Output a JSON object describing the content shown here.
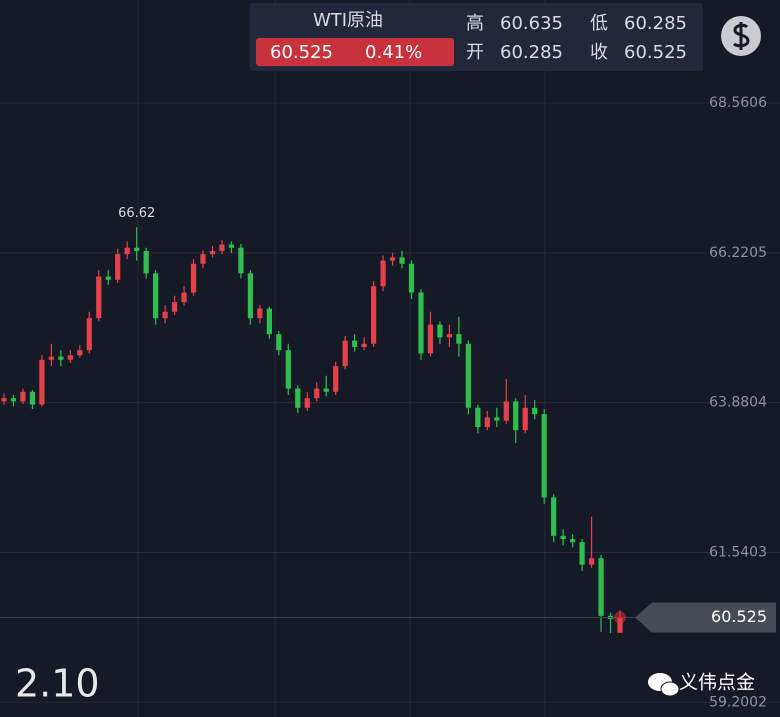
{
  "chart_data": {
    "type": "candlestick",
    "quote": {
      "name": "WTI原油",
      "price": 60.525,
      "change": "0.41%",
      "high_label": "高",
      "high": 60.635,
      "low_label": "低",
      "low": 60.285,
      "open_label": "开",
      "open": 60.285,
      "close_label": "收",
      "close": 60.525
    },
    "open": [
      63.9,
      63.95,
      63.9,
      64.05,
      63.85,
      64.55,
      64.6,
      64.55,
      64.62,
      64.7,
      65.2,
      65.85,
      65.8,
      66.2,
      66.3,
      66.25,
      65.9,
      65.2,
      65.3,
      65.45,
      65.6,
      66.05,
      66.2,
      66.25,
      66.35,
      66.3,
      65.9,
      65.2,
      65.35,
      64.95,
      64.7,
      64.1,
      63.8,
      63.95,
      64.1,
      64.05,
      64.45,
      64.85,
      64.75,
      64.8,
      65.7,
      66.1,
      66.15,
      66.05,
      65.6,
      64.65,
      65.1,
      64.9,
      64.95,
      64.8,
      63.8,
      63.5,
      63.65,
      63.6,
      63.9,
      63.45,
      63.8,
      63.7,
      62.4,
      61.8,
      61.75,
      61.7,
      61.35,
      61.45,
      60.55,
      60.285
    ],
    "high": [
      64.02,
      64.0,
      64.1,
      64.08,
      64.62,
      64.8,
      64.7,
      64.7,
      64.78,
      65.3,
      65.95,
      65.95,
      66.28,
      66.4,
      66.62,
      66.3,
      65.95,
      65.4,
      65.55,
      65.7,
      66.12,
      66.26,
      66.33,
      66.42,
      66.4,
      66.36,
      65.95,
      65.4,
      65.38,
      65.0,
      64.8,
      64.15,
      64.05,
      64.2,
      64.3,
      64.52,
      64.92,
      64.95,
      64.9,
      65.78,
      66.18,
      66.22,
      66.25,
      66.1,
      65.65,
      65.3,
      65.15,
      65.1,
      65.22,
      64.85,
      63.85,
      63.75,
      63.8,
      64.25,
      63.95,
      64.0,
      63.92,
      63.78,
      62.45,
      61.9,
      61.82,
      61.75,
      62.1,
      61.5,
      60.6,
      60.635
    ],
    "low": [
      63.85,
      63.82,
      63.86,
      63.78,
      63.82,
      64.45,
      64.45,
      64.5,
      64.58,
      64.65,
      65.15,
      65.72,
      65.75,
      66.12,
      66.1,
      65.82,
      65.1,
      65.12,
      65.25,
      65.4,
      65.55,
      65.98,
      66.15,
      66.2,
      66.22,
      65.82,
      65.1,
      65.12,
      64.88,
      64.62,
      64.0,
      63.72,
      63.75,
      63.9,
      63.98,
      64.0,
      64.4,
      64.68,
      64.7,
      64.75,
      65.62,
      66.02,
      65.98,
      65.5,
      64.55,
      64.6,
      64.8,
      64.75,
      64.6,
      63.7,
      63.4,
      63.45,
      63.5,
      63.55,
      63.25,
      63.4,
      63.62,
      62.3,
      61.7,
      61.65,
      61.62,
      61.25,
      61.3,
      60.3,
      60.28,
      60.285
    ],
    "close": [
      63.95,
      63.9,
      64.05,
      63.85,
      64.55,
      64.6,
      64.55,
      64.62,
      64.7,
      65.2,
      65.85,
      65.8,
      66.2,
      66.3,
      66.25,
      65.9,
      65.2,
      65.3,
      65.45,
      65.6,
      66.05,
      66.2,
      66.25,
      66.35,
      66.3,
      65.9,
      65.2,
      65.35,
      64.95,
      64.7,
      64.1,
      63.8,
      63.95,
      64.1,
      64.05,
      64.45,
      64.85,
      64.75,
      64.8,
      65.7,
      66.1,
      66.15,
      66.05,
      65.6,
      64.65,
      65.1,
      64.9,
      64.95,
      64.8,
      63.8,
      63.5,
      63.65,
      63.6,
      63.9,
      63.45,
      63.8,
      63.7,
      62.4,
      61.8,
      61.75,
      61.7,
      61.35,
      61.45,
      60.55,
      60.5,
      60.525
    ],
    "up_color": "#e5414b",
    "down_color": "#2fbf4f",
    "max_label": 66.62,
    "last_price": 60.525,
    "ylim": [
      58.97,
      70.17
    ],
    "yticks": [
      59.2002,
      61.5403,
      63.8804,
      66.2205,
      68.5606
    ],
    "grid": true,
    "date_label": "2.10",
    "watermark": "义伟点金"
  }
}
